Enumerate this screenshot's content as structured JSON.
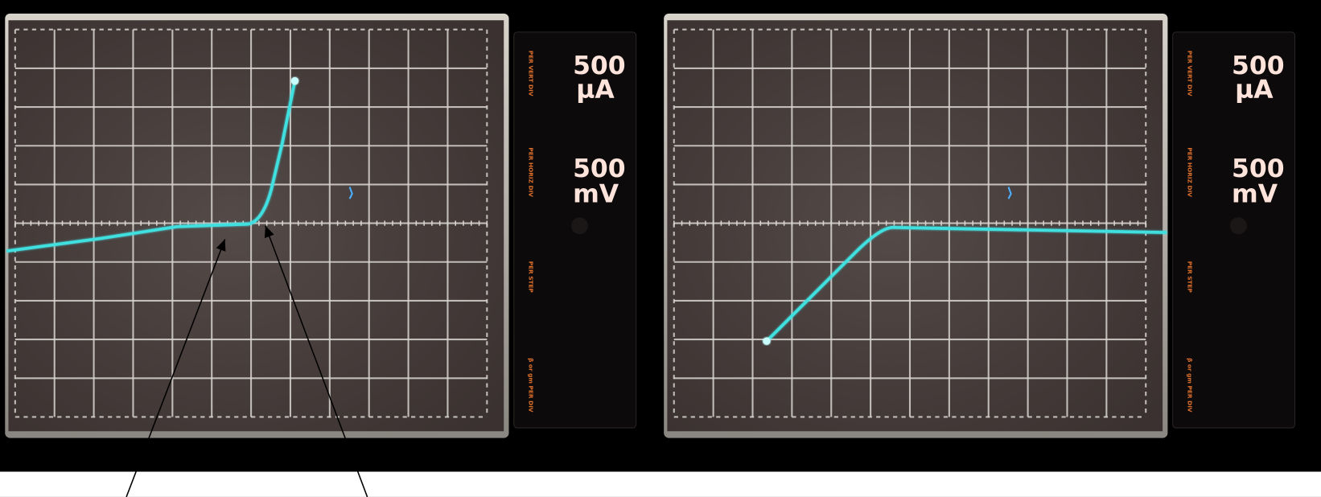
{
  "panels": [
    {
      "vertical": {
        "label": "PER VERT DIV",
        "value": "500",
        "unit": "µA"
      },
      "horizontal": {
        "label": "PER HORIZ DIV",
        "value": "500",
        "unit": "mV"
      },
      "step": {
        "label": "PER STEP"
      },
      "gain": {
        "label": "β or gm PER DIV"
      }
    },
    {
      "vertical": {
        "label": "PER VERT DIV",
        "value": "500",
        "unit": "µA"
      },
      "horizontal": {
        "label": "PER HORIZ DIV",
        "value": "500",
        "unit": "mV"
      },
      "step": {
        "label": "PER STEP"
      },
      "gain": {
        "label": "β or gm PER DIV"
      }
    }
  ]
}
